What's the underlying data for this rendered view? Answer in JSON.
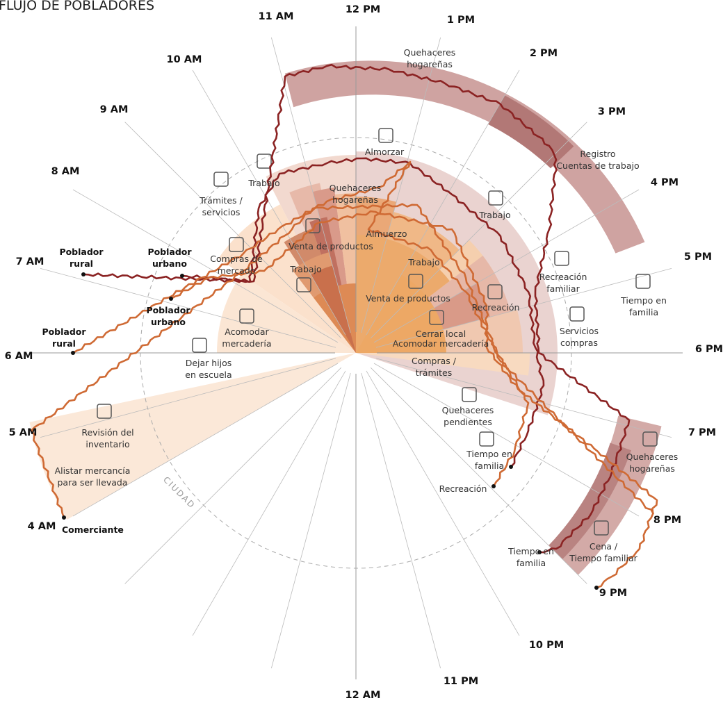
{
  "title": "FLUJO DE POBLADORES",
  "ciudad": "CIUDAD",
  "hours": [
    "12 PM",
    "1 PM",
    "2 PM",
    "3 PM",
    "4 PM",
    "5 PM",
    "6 PM",
    "7 PM",
    "8 PM",
    "9 PM",
    "10 PM",
    "11 PM",
    "12 AM",
    "4 AM",
    "5 AM",
    "6 AM",
    "7 AM",
    "8 AM",
    "9 AM",
    "10 AM",
    "11 AM"
  ],
  "activities": [
    {
      "lines": [
        "Quehaceres",
        "hogareñas"
      ]
    },
    {
      "lines": [
        "Almorzar"
      ]
    },
    {
      "lines": [
        "Registro",
        "Cuentas de trabajo"
      ]
    },
    {
      "lines": [
        "Trabajo"
      ]
    },
    {
      "lines": [
        "Trámites /",
        "servicios"
      ]
    },
    {
      "lines": [
        "Quehaceres",
        "hogareñas"
      ]
    },
    {
      "lines": [
        "Trabajo"
      ]
    },
    {
      "lines": [
        "Compras de",
        "mercado"
      ]
    },
    {
      "lines": [
        "Venta de productos"
      ]
    },
    {
      "lines": [
        "Almuerzo"
      ]
    },
    {
      "lines": [
        "Trabajo"
      ]
    },
    {
      "lines": [
        "Trabajo"
      ]
    },
    {
      "lines": [
        "Recreación",
        "familiar"
      ]
    },
    {
      "lines": [
        "Tiempo en",
        "familia"
      ]
    },
    {
      "lines": [
        "Venta de productos"
      ]
    },
    {
      "lines": [
        "Recreación"
      ]
    },
    {
      "lines": [
        "Servicios",
        "compras"
      ]
    },
    {
      "lines": [
        "Cerrar local",
        "Acomodar mercadería"
      ]
    },
    {
      "lines": [
        "Acomodar",
        "mercadería"
      ]
    },
    {
      "lines": [
        "Compras /",
        "trámites"
      ]
    },
    {
      "lines": [
        "Dejar hijos",
        "en escuela"
      ]
    },
    {
      "lines": [
        "Quehaceres",
        "pendientes"
      ]
    },
    {
      "lines": [
        "Revisión del",
        "inventario"
      ]
    },
    {
      "lines": [
        "Quehaceres",
        "hogareñas"
      ]
    },
    {
      "lines": [
        "Tiempo en",
        "familia"
      ]
    },
    {
      "lines": [
        "Alistar mercancía",
        "para ser llevada"
      ]
    },
    {
      "lines": [
        "Recreación"
      ]
    },
    {
      "lines": [
        "Tiempo en",
        "familia"
      ]
    },
    {
      "lines": [
        "Cena /",
        "Tiempo familiar"
      ]
    }
  ],
  "personas": [
    {
      "lines": [
        "Poblador",
        "rural"
      ]
    },
    {
      "lines": [
        "Poblador",
        "urbano"
      ]
    },
    {
      "lines": [
        "Poblador",
        "urbano"
      ]
    },
    {
      "lines": [
        "Poblador",
        "rural"
      ]
    },
    {
      "lines": [
        "Comerciante"
      ]
    }
  ]
}
